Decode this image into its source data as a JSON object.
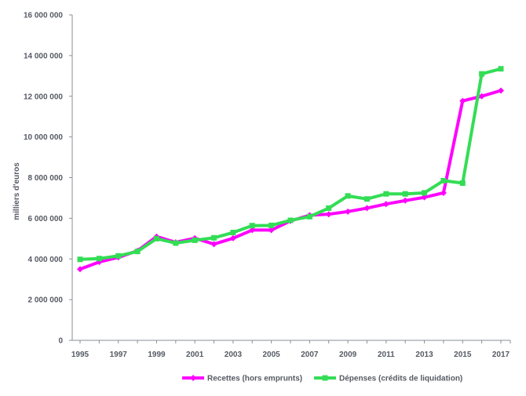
{
  "chart_data": {
    "type": "line",
    "title": "",
    "xlabel": "",
    "ylabel": "milliers d'euros",
    "x": [
      1995,
      1996,
      1997,
      1998,
      1999,
      2000,
      2001,
      2002,
      2003,
      2004,
      2005,
      2006,
      2007,
      2008,
      2009,
      2010,
      2011,
      2012,
      2013,
      2014,
      2015,
      2016,
      2017
    ],
    "x_tick_labels": [
      "1995",
      "1997",
      "1999",
      "2001",
      "2003",
      "2005",
      "2007",
      "2009",
      "2011",
      "2013",
      "2015",
      "2017"
    ],
    "ylim": [
      0,
      16000000
    ],
    "y_tick_labels": [
      "0",
      "2 000 000",
      "4 000 000",
      "6 000 000",
      "8 000 000",
      "10 000 000",
      "12 000 000",
      "14 000 000",
      "16 000 000"
    ],
    "y_tick_values": [
      0,
      2000000,
      4000000,
      6000000,
      8000000,
      10000000,
      12000000,
      14000000,
      16000000
    ],
    "grid": false,
    "legend_position": "bottom",
    "series": [
      {
        "name": "Recettes (hors emprunts)",
        "color": "#ff00ff",
        "marker": "diamond",
        "values": [
          3500000,
          3850000,
          4080000,
          4400000,
          5100000,
          4820000,
          5020000,
          4730000,
          5020000,
          5420000,
          5420000,
          5870000,
          6150000,
          6200000,
          6330000,
          6500000,
          6700000,
          6870000,
          7030000,
          7250000,
          11770000,
          12000000,
          12280000
        ]
      },
      {
        "name": "Dépenses (crédits de liquidation)",
        "color": "#33dd55",
        "marker": "square",
        "values": [
          3980000,
          4020000,
          4150000,
          4370000,
          5000000,
          4780000,
          4920000,
          5040000,
          5300000,
          5640000,
          5650000,
          5900000,
          6080000,
          6500000,
          7100000,
          6950000,
          7200000,
          7200000,
          7250000,
          7850000,
          7730000,
          13100000,
          13350000
        ]
      }
    ]
  }
}
